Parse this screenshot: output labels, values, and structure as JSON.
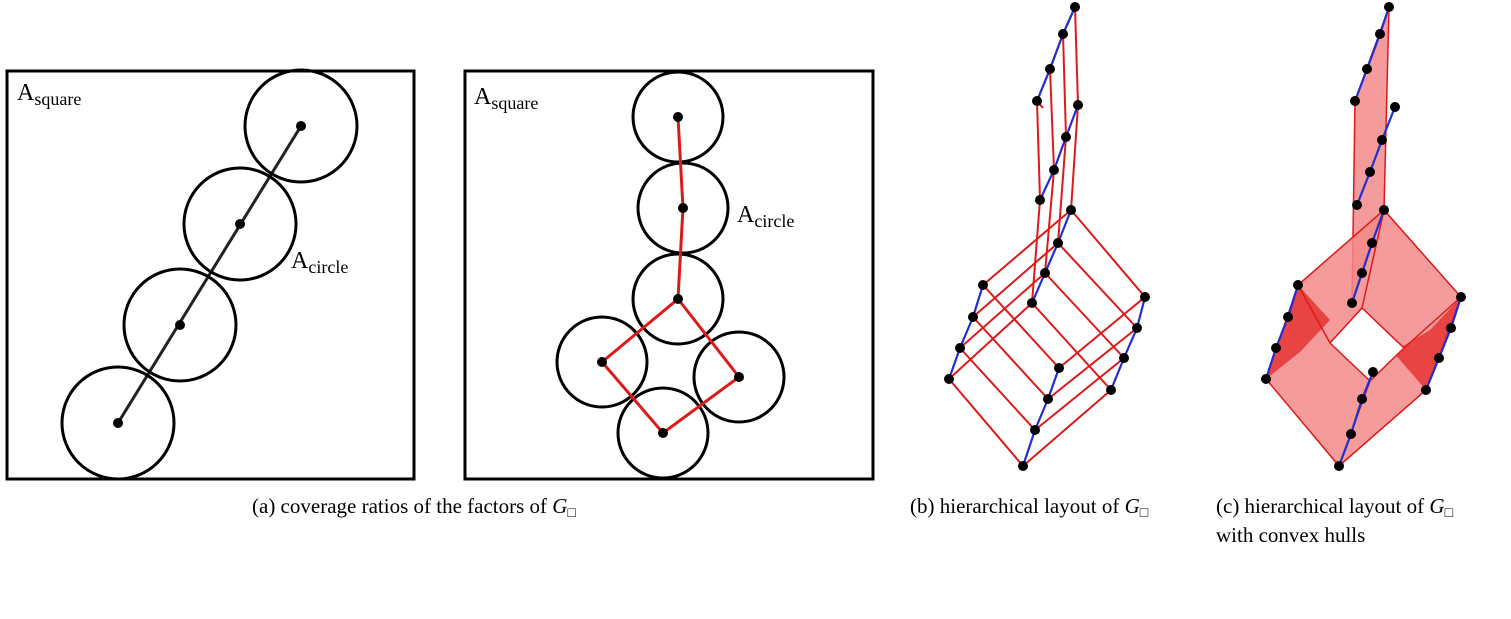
{
  "panel_a": {
    "left_square_label": {
      "main": "A",
      "sub": "square"
    },
    "left_circle_label": {
      "main": "A",
      "sub": "circle"
    },
    "right_square_label": {
      "main": "A",
      "sub": "square"
    },
    "right_circle_label": {
      "main": "A",
      "sub": "circle"
    }
  },
  "captions": {
    "a": {
      "prefix": "(a)  coverage ratios of the factors of ",
      "symbol": "G",
      "box": "□"
    },
    "b": {
      "prefix": "(b)  hierarchical layout of ",
      "symbol": "G",
      "box": "□"
    },
    "c_line1": {
      "prefix": "(c)  hierarchical  layout  of  ",
      "symbol": "G",
      "box": "□"
    },
    "c_line2": "with convex hulls"
  },
  "colors": {
    "outline": "#000000",
    "edge_red": "#dd1a1a",
    "edge_blue": "#1f2fd0",
    "hull_fill": "#f48a8a",
    "hull_fill_dark": "#e53535"
  }
}
